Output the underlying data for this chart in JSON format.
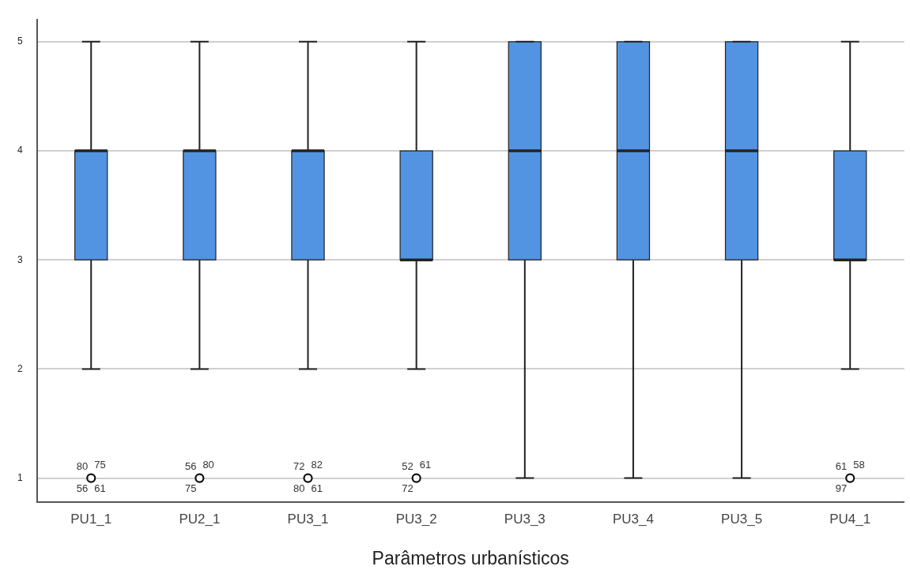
{
  "chart_data": {
    "type": "box",
    "xlabel": "Parâmetros urbanísticos",
    "categories": [
      "PU1_1",
      "PU2_1",
      "PU3_1",
      "PU3_2",
      "PU3_3",
      "PU3_4",
      "PU3_5",
      "PU4_1"
    ],
    "series": [
      {
        "color": "#5294e2",
        "boxes": [
          {
            "low": 2,
            "q1": 3,
            "median": 4,
            "q3": 4,
            "high": 5
          },
          {
            "low": 2,
            "q1": 3,
            "median": 4,
            "q3": 4,
            "high": 5
          },
          {
            "low": 2,
            "q1": 3,
            "median": 4,
            "q3": 4,
            "high": 5
          },
          {
            "low": 2,
            "q1": 3,
            "median": 3,
            "q3": 4,
            "high": 5
          },
          {
            "low": 1,
            "q1": 3,
            "median": 4,
            "q3": 5,
            "high": 5
          },
          {
            "low": 1,
            "q1": 3,
            "median": 4,
            "q3": 5,
            "high": 5
          },
          {
            "low": 1,
            "q1": 3,
            "median": 4,
            "q3": 5,
            "high": 5
          },
          {
            "low": 2,
            "q1": 3,
            "median": 3,
            "q3": 4,
            "high": 5
          }
        ]
      },
      {
        "type": "scatter",
        "color": "#111111",
        "x": [
          "PU1_1",
          "PU2_1",
          "PU3_1",
          "PU3_2",
          "PU4_1"
        ],
        "values": [
          1,
          1,
          1,
          1,
          1
        ]
      }
    ],
    "ylim": [
      0.78,
      5.2
    ],
    "yticks": [
      1,
      2,
      3,
      4,
      5
    ],
    "grid": "y",
    "legend": false,
    "marker": "circle",
    "annotations": [
      {
        "text": "80",
        "x": "PU1_1",
        "y": 1
      },
      {
        "text": "75",
        "x": "PU1_1",
        "y": 1
      },
      {
        "text": "56",
        "x": "PU1_1",
        "y": 1
      },
      {
        "text": "61",
        "x": "PU1_1",
        "y": 1
      },
      {
        "text": "56",
        "x": "PU2_1",
        "y": 1
      },
      {
        "text": "80",
        "x": "PU2_1",
        "y": 1
      },
      {
        "text": "75",
        "x": "PU2_1",
        "y": 1
      },
      {
        "text": "72",
        "x": "PU3_1",
        "y": 1
      },
      {
        "text": "82",
        "x": "PU3_1",
        "y": 1
      },
      {
        "text": "80",
        "x": "PU3_1",
        "y": 1
      },
      {
        "text": "61",
        "x": "PU3_1",
        "y": 1
      },
      {
        "text": "52",
        "x": "PU3_2",
        "y": 1
      },
      {
        "text": "61",
        "x": "PU3_2",
        "y": 1
      },
      {
        "text": "72",
        "x": "PU3_2",
        "y": 1
      },
      {
        "text": "61",
        "x": "PU4_1",
        "y": 1
      },
      {
        "text": "58",
        "x": "PU4_1",
        "y": 1
      },
      {
        "text": "97",
        "x": "PU4_1",
        "y": 1
      }
    ]
  }
}
